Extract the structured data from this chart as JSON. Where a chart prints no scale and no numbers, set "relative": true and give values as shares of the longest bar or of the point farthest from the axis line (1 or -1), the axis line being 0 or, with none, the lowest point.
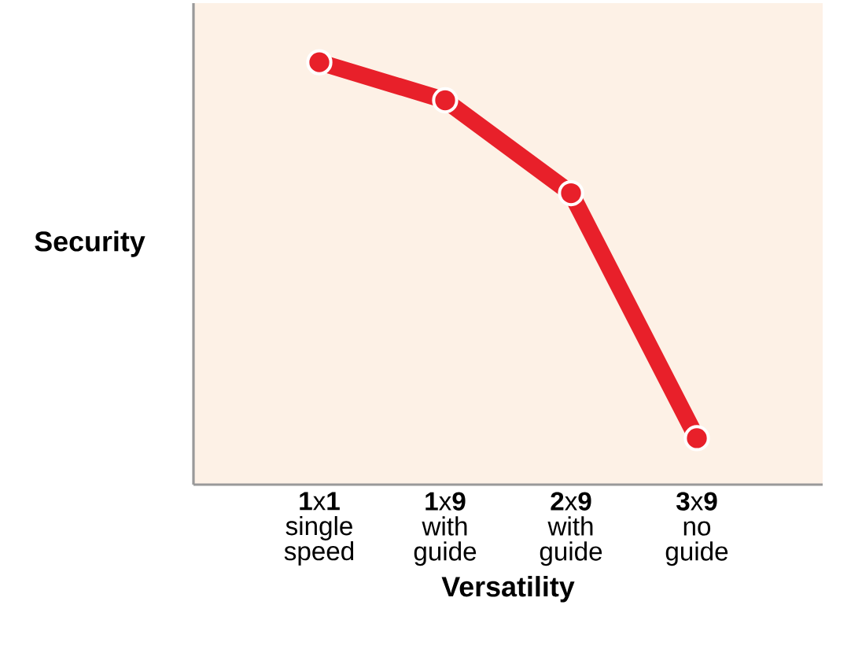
{
  "chart_data": {
    "type": "line",
    "relative": true,
    "xlabel": "Versatility",
    "ylabel": "Security",
    "categories": [
      "**1**x**1** single speed",
      "**1**x**9** with guide",
      "**2**x**9** with guide",
      "**3**x**9** no guide"
    ],
    "series": [
      {
        "color": "#e8202a",
        "values": [
          1,
          0.91,
          0.69,
          0.11
        ]
      }
    ],
    "marker": "circle",
    "line_style": "solid"
  }
}
